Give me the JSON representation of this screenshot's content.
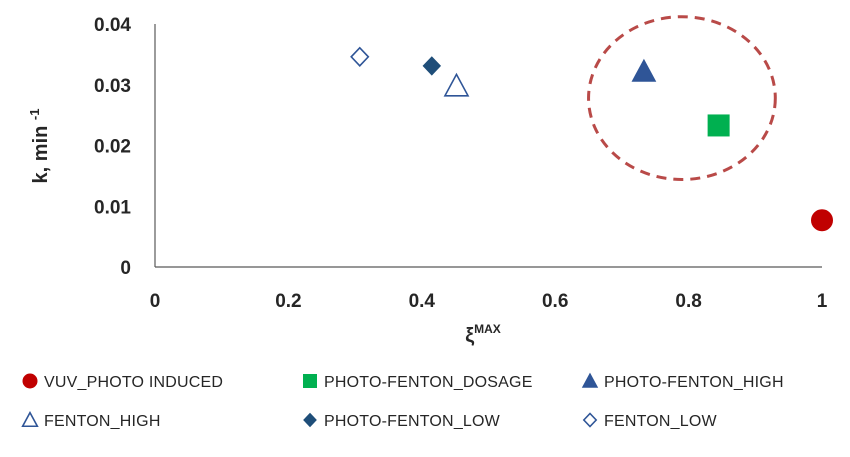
{
  "chart_data": {
    "type": "scatter",
    "title": "",
    "xlabel": "ξ",
    "xlabel_superscript": "MAX",
    "ylabel": "k, min",
    "ylabel_superscript": "-1",
    "xlim": [
      0,
      1
    ],
    "ylim": [
      0,
      0.04
    ],
    "x_ticks": [
      0,
      0.2,
      0.4,
      0.6,
      0.8,
      1
    ],
    "x_tick_labels": [
      "0",
      "0.2",
      "0.4",
      "0.6",
      "0.8",
      "1"
    ],
    "y_ticks": [
      0,
      0.01,
      0.02,
      0.03,
      0.04
    ],
    "y_tick_labels": [
      "0",
      "0.01",
      "0.02",
      "0.03",
      "0.04"
    ],
    "grid": false,
    "legend_position": "bottom",
    "series": [
      {
        "name": "VUV_PHOTO INDUCED",
        "marker": "circle",
        "filled": true,
        "color": "#C00000",
        "points": [
          {
            "x": 1.0,
            "y": 0.0077
          }
        ]
      },
      {
        "name": "PHOTO-FENTON_DOSAGE",
        "marker": "square",
        "filled": true,
        "color": "#00B050",
        "points": [
          {
            "x": 0.845,
            "y": 0.0233
          }
        ]
      },
      {
        "name": "PHOTO-FENTON_HIGH",
        "marker": "triangle",
        "filled": true,
        "color": "#2F5597",
        "points": [
          {
            "x": 0.733,
            "y": 0.0322
          }
        ]
      },
      {
        "name": "FENTON_HIGH",
        "marker": "triangle",
        "filled": false,
        "color": "#2F5597",
        "points": [
          {
            "x": 0.452,
            "y": 0.0298
          }
        ]
      },
      {
        "name": "PHOTO-FENTON_LOW",
        "marker": "diamond",
        "filled": true,
        "color": "#1F4E79",
        "points": [
          {
            "x": 0.415,
            "y": 0.0331
          }
        ]
      },
      {
        "name": "FENTON_LOW",
        "marker": "diamond",
        "filled": false,
        "color": "#2F5597",
        "points": [
          {
            "x": 0.307,
            "y": 0.0346
          }
        ]
      }
    ],
    "annotations": [
      {
        "type": "dashed-ellipse",
        "color": "#B94A48",
        "center": {
          "x": 0.79,
          "y": 0.0278
        },
        "radius_x": 0.14,
        "radius_y": 0.0134
      }
    ]
  }
}
